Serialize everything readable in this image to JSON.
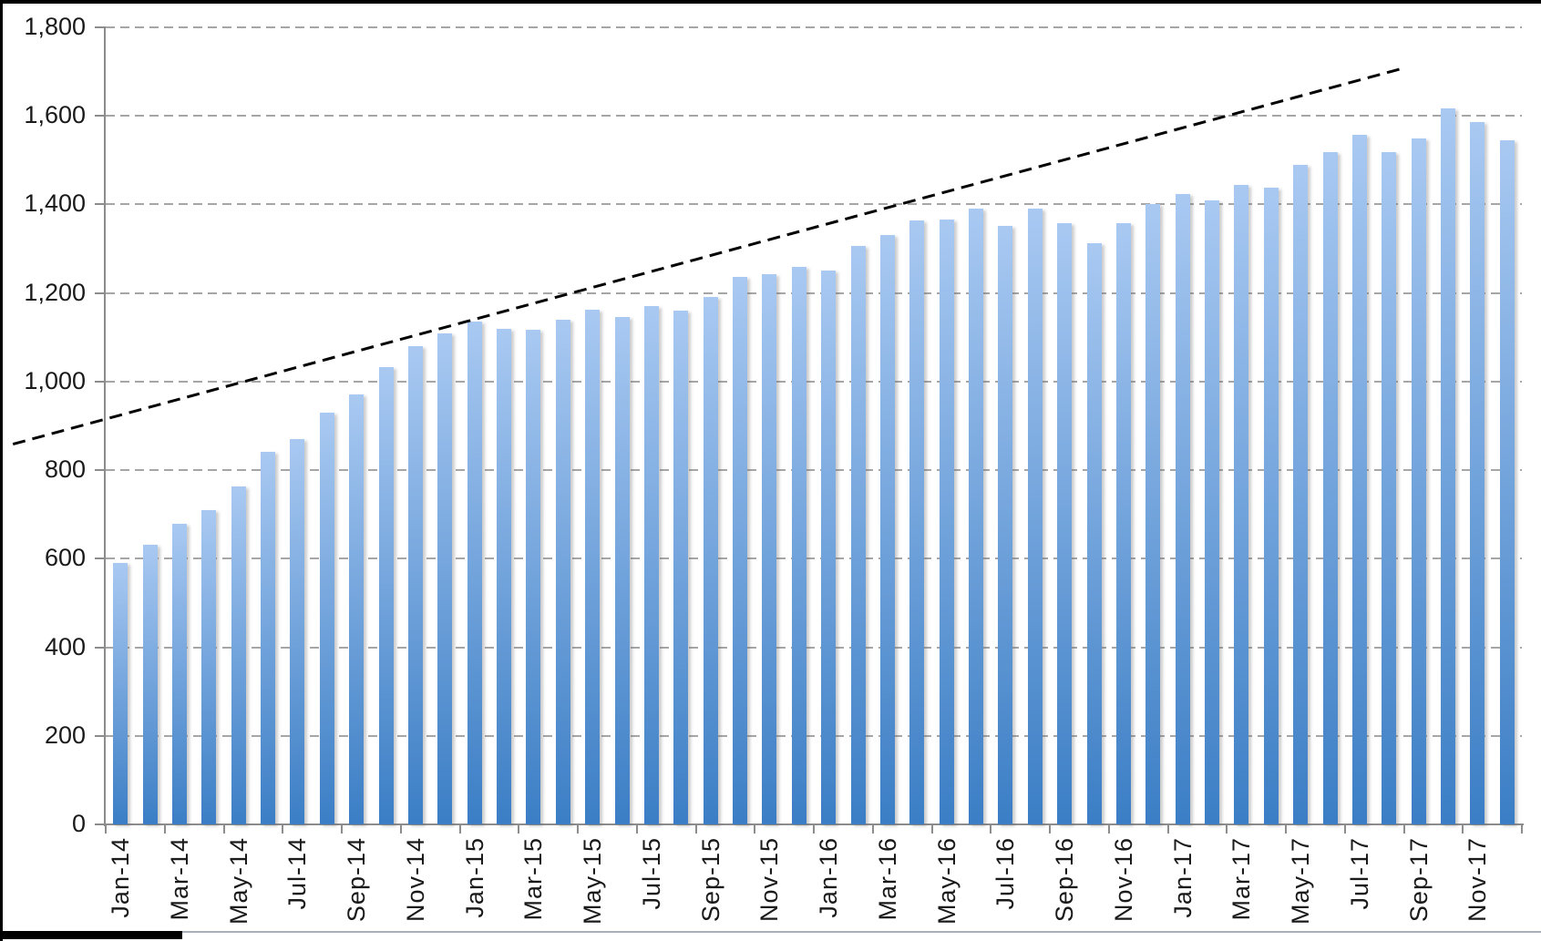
{
  "chart_data": {
    "type": "bar",
    "title": "",
    "categories": [
      "Jan-14",
      "Feb-14",
      "Mar-14",
      "Apr-14",
      "May-14",
      "Jun-14",
      "Jul-14",
      "Aug-14",
      "Sep-14",
      "Oct-14",
      "Nov-14",
      "Dec-14",
      "Jan-15",
      "Feb-15",
      "Mar-15",
      "Apr-15",
      "May-15",
      "Jun-15",
      "Jul-15",
      "Aug-15",
      "Sep-15",
      "Oct-15",
      "Nov-15",
      "Dec-15",
      "Jan-16",
      "Feb-16",
      "Mar-16",
      "Apr-16",
      "May-16",
      "Jun-16",
      "Jul-16",
      "Aug-16",
      "Sep-16",
      "Oct-16",
      "Nov-16",
      "Dec-16",
      "Jan-17",
      "Feb-17",
      "Mar-17",
      "Apr-17",
      "May-17",
      "Jun-17",
      "Jul-17",
      "Aug-17",
      "Sep-17",
      "Oct-17",
      "Nov-17",
      "Dec-17"
    ],
    "values": [
      590,
      632,
      678,
      710,
      763,
      841,
      870,
      930,
      972,
      1033,
      1080,
      1108,
      1135,
      1120,
      1117,
      1140,
      1163,
      1146,
      1171,
      1161,
      1191,
      1236,
      1242,
      1258,
      1251,
      1306,
      1332,
      1363,
      1365,
      1391,
      1351,
      1391,
      1357,
      1313,
      1357,
      1400,
      1424,
      1410,
      1444,
      1438,
      1490,
      1518,
      1557,
      1518,
      1550,
      1617,
      1586,
      1545
    ],
    "x_tick_labels": [
      "Jan-14",
      "Mar-14",
      "May-14",
      "Jul-14",
      "Sep-14",
      "Nov-14",
      "Jan-15",
      "Mar-15",
      "May-15",
      "Jul-15",
      "Sep-15",
      "Nov-15",
      "Jan-16",
      "Mar-16",
      "May-16",
      "Jul-16",
      "Sep-16",
      "Nov-16",
      "Jan-17",
      "Mar-17",
      "May-17",
      "Jul-17",
      "Sep-17",
      "Nov-17"
    ],
    "y_tick_values": [
      0,
      200,
      400,
      600,
      800,
      1000,
      1200,
      1400,
      1600,
      1800
    ],
    "y_tick_labels": [
      "0",
      "200",
      "400",
      "600",
      "800",
      "1,000",
      "1,200",
      "1,400",
      "1,600",
      "1,800"
    ],
    "ylim": [
      0,
      1800
    ],
    "xlabel": "",
    "ylabel": "",
    "grid": "horizontal-dashed",
    "legend": "none",
    "trendline": {
      "style": "dashed",
      "color": "#000000",
      "start_value": 797,
      "end_value": 1646
    },
    "colors": {
      "bar_top": "#a9c9f2",
      "bar_bottom": "#3b7ec5",
      "axis": "#8c8c8c",
      "gridline": "#a6a6a6",
      "tick_label": "#1a1a1a",
      "trend": "#000000"
    }
  }
}
